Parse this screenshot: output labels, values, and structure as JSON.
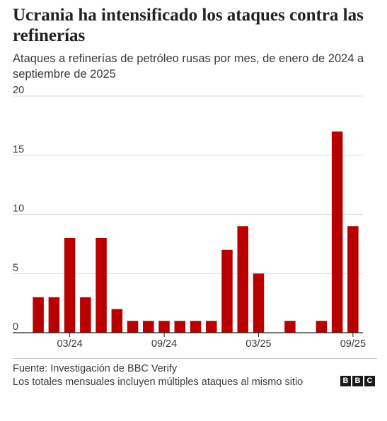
{
  "header": {
    "title": "Ucrania ha intensificado los ataques contra las refinerías",
    "subtitle": "Ataques a refinerías de petróleo rusas por mes, de enero de 2024 a septiembre de 2025"
  },
  "footer": {
    "source": "Fuente: Investigación de BBC Verify",
    "note": "Los totales mensuales incluyen múltiples ataques al mismo sitio",
    "logo_letters": [
      "B",
      "B",
      "C"
    ]
  },
  "colors": {
    "bar": "#b80000",
    "gridline": "#d9d9d9",
    "axis": "#222222"
  },
  "chart_data": {
    "type": "bar",
    "categories": [
      "01/24",
      "02/24",
      "03/24",
      "04/24",
      "05/24",
      "06/24",
      "07/24",
      "08/24",
      "09/24",
      "10/24",
      "11/24",
      "12/24",
      "01/25",
      "02/25",
      "03/25",
      "04/25",
      "05/25",
      "06/25",
      "07/25",
      "08/25",
      "09/25"
    ],
    "values": [
      3,
      3,
      8,
      3,
      8,
      2,
      1,
      1,
      1,
      1,
      1,
      1,
      7,
      9,
      5,
      0,
      1,
      0,
      1,
      17,
      9
    ],
    "x_tick_labels": [
      {
        "category": "03/24",
        "label": "03/24"
      },
      {
        "category": "09/24",
        "label": "09/24"
      },
      {
        "category": "03/25",
        "label": "03/25"
      },
      {
        "category": "09/25",
        "label": "09/25"
      }
    ],
    "y_ticks": [
      0,
      5,
      10,
      15,
      20
    ],
    "ylim": [
      0,
      20
    ],
    "grid": true,
    "title": "Ucrania ha intensificado los ataques contra las refinerías",
    "xlabel": "",
    "ylabel": ""
  }
}
